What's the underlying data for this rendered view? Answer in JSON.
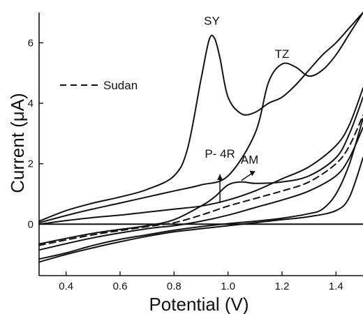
{
  "chart_data": {
    "type": "line",
    "xlabel": "Potential (V)",
    "ylabel": "Current (μA)",
    "xlim": [
      0.3,
      1.5
    ],
    "ylim": [
      -1.7,
      7.0
    ],
    "x_ticks": [
      "0.4",
      "0.6",
      "0.8",
      "1.0",
      "1.2",
      "1.4"
    ],
    "x_tick_values": [
      0.4,
      0.6,
      0.8,
      1.0,
      1.2,
      1.4
    ],
    "y_ticks": [
      "0",
      "2",
      "4",
      "6"
    ],
    "y_tick_values": [
      0,
      2,
      4,
      6
    ],
    "legend": {
      "label": "Sudan",
      "style": "dashed",
      "position": "top-left"
    },
    "grid": false,
    "annotations": [
      {
        "text": "SY",
        "x": 0.94,
        "y": 6.6
      },
      {
        "text": "TZ",
        "x": 1.2,
        "y": 5.5
      },
      {
        "text": "P- 4R",
        "x": 0.97,
        "y": 2.2
      },
      {
        "text": "AM",
        "x": 1.08,
        "y": 2.0
      }
    ],
    "series": [
      {
        "style": "solid",
        "x": [
          0.3,
          0.4,
          0.5,
          0.6,
          0.7,
          0.8,
          0.85,
          0.9,
          0.93,
          0.95,
          0.97,
          1.0,
          1.05,
          1.1,
          1.15,
          1.2,
          1.25,
          1.3,
          1.35,
          1.4,
          1.45,
          1.5
        ],
        "y": [
          0.1,
          0.45,
          0.7,
          0.9,
          1.15,
          1.6,
          2.5,
          4.8,
          6.1,
          6.15,
          5.5,
          4.2,
          3.65,
          3.7,
          4.0,
          4.2,
          4.6,
          5.1,
          5.6,
          6.0,
          6.5,
          7.0
        ]
      },
      {
        "style": "solid",
        "x": [
          0.3,
          0.45,
          0.6,
          0.7,
          0.8,
          0.9,
          1.0,
          1.1,
          1.15,
          1.2,
          1.25,
          1.3,
          1.35,
          1.4,
          1.45,
          1.5
        ],
        "y": [
          0.05,
          0.4,
          0.7,
          0.9,
          1.1,
          1.3,
          1.6,
          3.0,
          4.7,
          5.3,
          5.2,
          4.9,
          5.1,
          5.6,
          6.3,
          7.0
        ]
      },
      {
        "style": "solid",
        "x": [
          0.3,
          0.4,
          0.5,
          0.6,
          0.7,
          0.8,
          0.9,
          1.0,
          1.1,
          1.2,
          1.3,
          1.4,
          1.45,
          1.5
        ],
        "y": [
          0.0,
          0.12,
          0.22,
          0.3,
          0.4,
          0.5,
          0.6,
          0.8,
          1.1,
          1.5,
          1.9,
          2.6,
          3.3,
          4.5
        ]
      },
      {
        "style": "solid",
        "x": [
          0.3,
          0.5,
          0.7,
          0.8,
          0.9,
          0.95,
          1.0,
          1.05,
          1.1,
          1.2,
          1.3,
          1.4,
          1.45,
          1.5
        ],
        "y": [
          -0.65,
          -0.3,
          -0.05,
          0.15,
          0.6,
          0.9,
          1.3,
          1.4,
          1.35,
          1.4,
          1.6,
          2.2,
          3.0,
          4.2
        ]
      },
      {
        "style": "dashed",
        "x": [
          0.3,
          0.5,
          0.7,
          0.8,
          0.9,
          1.0,
          1.1,
          1.2,
          1.3,
          1.4,
          1.45,
          1.5
        ],
        "y": [
          -0.7,
          -0.35,
          -0.08,
          0.05,
          0.3,
          0.6,
          0.85,
          1.1,
          1.4,
          2.0,
          2.6,
          3.6
        ]
      },
      {
        "style": "solid",
        "x": [
          0.3,
          0.5,
          0.7,
          0.8,
          0.9,
          1.0,
          1.1,
          1.2,
          1.3,
          1.4,
          1.45,
          1.5
        ],
        "y": [
          -0.85,
          -0.45,
          -0.15,
          -0.05,
          0.1,
          0.3,
          0.55,
          0.8,
          1.1,
          1.6,
          2.2,
          3.2
        ]
      },
      {
        "style": "solid",
        "x": [
          0.3,
          0.4,
          0.5,
          0.6,
          0.7,
          0.8,
          0.9,
          1.0,
          1.1,
          1.2,
          1.3,
          1.35,
          1.4,
          1.45,
          1.5
        ],
        "y": [
          -1.15,
          -0.95,
          -0.7,
          -0.5,
          -0.35,
          -0.2,
          -0.08,
          0.02,
          0.1,
          0.2,
          0.35,
          0.5,
          1.0,
          2.0,
          3.5
        ]
      },
      {
        "style": "solid",
        "x": [
          0.3,
          0.4,
          0.5,
          0.6,
          0.7,
          0.8,
          0.9,
          1.0,
          1.1,
          1.2,
          1.3,
          1.4,
          1.45,
          1.5
        ],
        "y": [
          -1.25,
          -1.0,
          -0.78,
          -0.58,
          -0.4,
          -0.25,
          -0.15,
          -0.05,
          0.05,
          0.15,
          0.25,
          0.45,
          0.9,
          2.2
        ]
      },
      {
        "style": "solid",
        "x": [
          0.3,
          0.5,
          0.7,
          0.9,
          1.1,
          1.3,
          1.5
        ],
        "y": [
          0.0,
          0.0,
          0.0,
          0.0,
          0.0,
          0.0,
          0.0
        ]
      }
    ]
  }
}
